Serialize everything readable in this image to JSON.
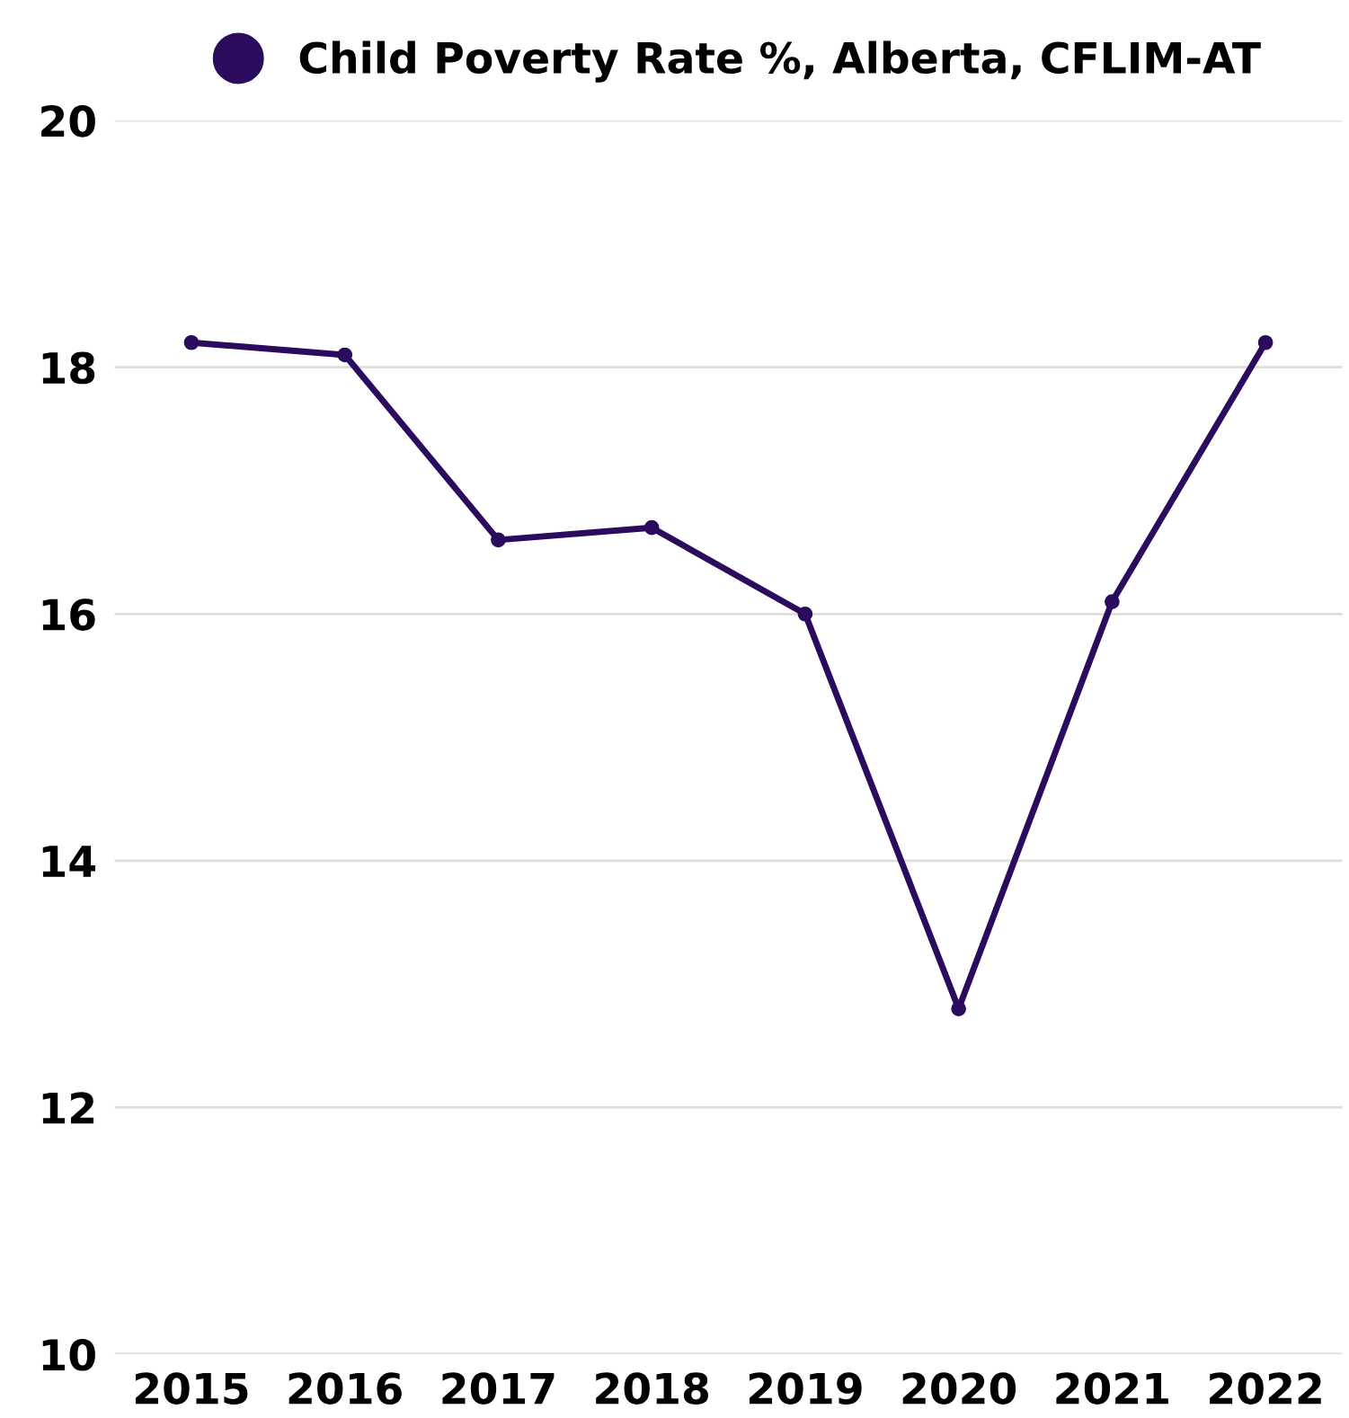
{
  "chart_data": {
    "type": "line",
    "categories": [
      "2015",
      "2016",
      "2017",
      "2018",
      "2019",
      "2020",
      "2021",
      "2022"
    ],
    "series": [
      {
        "name": "Child Poverty Rate %, Alberta, CFLIM-AT",
        "color": "#2a0b5e",
        "values": [
          18.2,
          18.1,
          16.6,
          16.7,
          16.0,
          12.8,
          16.1,
          18.2
        ]
      }
    ],
    "ylim": [
      10,
      20
    ],
    "yticks": [
      10,
      12,
      14,
      16,
      18,
      20
    ],
    "grid": "y",
    "legend": "top",
    "marker": "circle",
    "line_style": "solid"
  }
}
